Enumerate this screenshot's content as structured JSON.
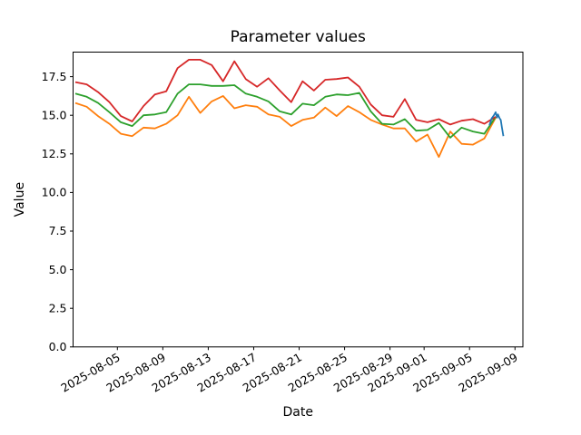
{
  "chart_data": {
    "type": "line",
    "title": "Parameter values",
    "xlabel": "Date",
    "ylabel": "Value",
    "grid": false,
    "legend": false,
    "ylim": [
      0,
      19.08
    ],
    "y_ticks": [
      0,
      2.5,
      5,
      7.5,
      10,
      12.5,
      15,
      17.5
    ],
    "y_tick_labels": [
      "0.0",
      "2.5",
      "5.0",
      "7.5",
      "10.0",
      "12.5",
      "15.0",
      "17.5"
    ],
    "x_tick_labels": [
      "2025-08-05",
      "2025-08-09",
      "2025-08-13",
      "2025-08-17",
      "2025-08-21",
      "2025-08-25",
      "2025-08-29",
      "2025-09-01",
      "2025-09-05",
      "2025-09-09"
    ],
    "x_start_date": "2025-08-01",
    "x_end_date": "2025-09-09",
    "series": [
      {
        "name": "orange-line",
        "color": "#ff7f0e",
        "start_date": "2025-08-01",
        "step_days": 1,
        "values": [
          15.8,
          15.55,
          14.95,
          14.45,
          13.8,
          13.65,
          14.2,
          14.15,
          14.45,
          15.0,
          16.2,
          15.15,
          15.9,
          16.25,
          15.45,
          15.65,
          15.55,
          15.05,
          14.9,
          14.3,
          14.7,
          14.85,
          15.5,
          14.95,
          15.6,
          15.2,
          14.7,
          14.4,
          14.15,
          14.15,
          13.3,
          13.75,
          12.3,
          13.95,
          13.15,
          13.1,
          13.5,
          14.85
        ]
      },
      {
        "name": "green-line",
        "color": "#2ca02c",
        "start_date": "2025-08-01",
        "step_days": 1,
        "values": [
          16.4,
          16.2,
          15.8,
          15.2,
          14.55,
          14.3,
          15.0,
          15.05,
          15.2,
          16.4,
          17.0,
          17.0,
          16.9,
          16.9,
          16.95,
          16.4,
          16.2,
          15.9,
          15.25,
          15.05,
          15.75,
          15.65,
          16.2,
          16.35,
          16.3,
          16.45,
          15.25,
          14.45,
          14.4,
          14.75,
          14.0,
          14.05,
          14.5,
          13.55,
          14.2,
          13.95,
          13.8,
          14.9
        ]
      },
      {
        "name": "red-line",
        "color": "#d62728",
        "start_date": "2025-08-01",
        "step_days": 1,
        "values": [
          17.15,
          17.0,
          16.5,
          15.85,
          14.95,
          14.6,
          15.6,
          16.35,
          16.55,
          18.05,
          18.6,
          18.6,
          18.25,
          17.2,
          18.5,
          17.35,
          16.85,
          17.4,
          16.6,
          15.85,
          17.2,
          16.6,
          17.3,
          17.35,
          17.45,
          16.85,
          15.7,
          15.0,
          14.9,
          16.05,
          14.7,
          14.55,
          14.75,
          14.4,
          14.65,
          14.75,
          14.45,
          14.9
        ]
      },
      {
        "name": "blue-line",
        "color": "#1f77b4",
        "points_day_value": [
          [
            36.75,
            14.35
          ],
          [
            36.95,
            14.8
          ],
          [
            37.15,
            15.0
          ],
          [
            37.3,
            15.2
          ],
          [
            37.42,
            14.85
          ],
          [
            37.5,
            15.05
          ],
          [
            37.65,
            14.8
          ],
          [
            37.75,
            14.7
          ],
          [
            37.85,
            14.2
          ],
          [
            37.98,
            13.65
          ]
        ]
      }
    ]
  }
}
